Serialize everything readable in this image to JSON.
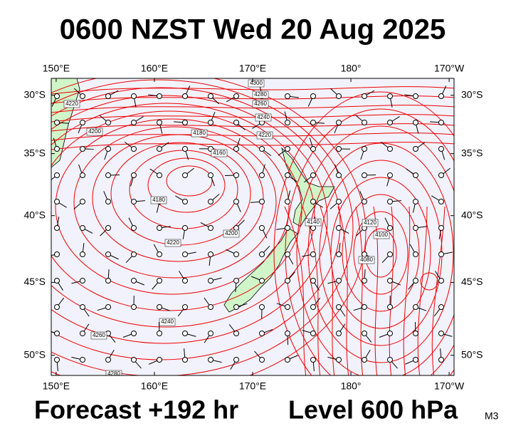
{
  "title": "0600 NZST Wed 20 Aug 2025",
  "footer": {
    "forecast": "Forecast +192 hr",
    "level": "Level 600 hPa",
    "model": "M3"
  },
  "map": {
    "lonlim": [
      149.5,
      190.5
    ],
    "latlim": [
      -28.5,
      -51.3
    ],
    "lonticks": [
      {
        "value": 150,
        "label": "150°E"
      },
      {
        "value": 160,
        "label": "160°E"
      },
      {
        "value": 170,
        "label": "170°E"
      },
      {
        "value": 180,
        "label": "180°"
      },
      {
        "value": 190,
        "label": "170°W"
      }
    ],
    "latticks": [
      {
        "value": -30,
        "label": "30°S"
      },
      {
        "value": -35,
        "label": "35°S"
      },
      {
        "value": -40,
        "label": "40°S"
      },
      {
        "value": -45,
        "label": "45°S"
      },
      {
        "value": -50,
        "label": "50°S"
      }
    ],
    "contour_labels": [
      "4300",
      "4280",
      "4260",
      "4240",
      "4220",
      "4180",
      "4160",
      "4180",
      "4200",
      "4220",
      "4240",
      "4260",
      "4280",
      "4220",
      "4200",
      "4140",
      "4120",
      "4100",
      "4080"
    ]
  }
}
